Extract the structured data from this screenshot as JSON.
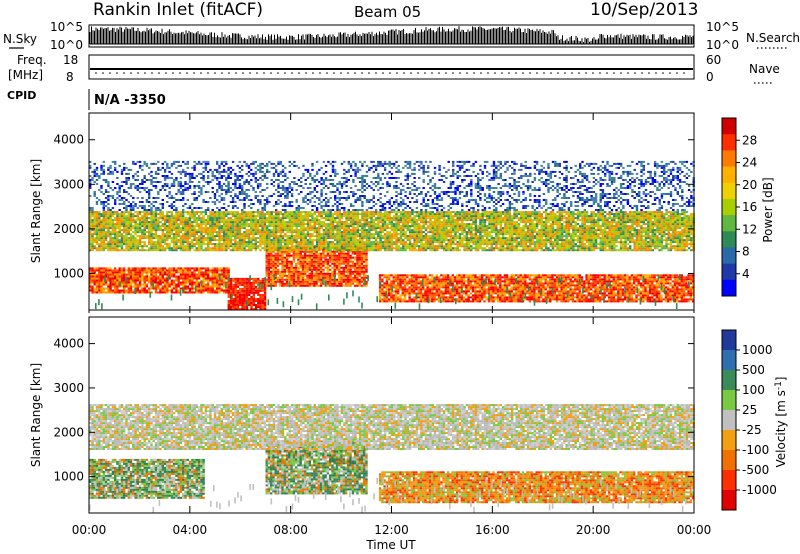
{
  "header": {
    "station": "Rankin Inlet (fitACF)",
    "beam": "Beam 05",
    "date": "10/Sep/2013"
  },
  "noise_panel": {
    "left_label": "N.Sky",
    "right_label": "N.Search",
    "left_top": "10^5",
    "left_bottom": "10^0",
    "right_top": "10^5",
    "right_bottom": "10^0"
  },
  "freq_panel": {
    "left_label_1": "Freq.",
    "left_label_2": "[MHz]",
    "right_label": "Nave",
    "left_top": "18",
    "left_bottom": "8",
    "right_top": "60",
    "right_bottom": "0"
  },
  "cpid": {
    "label": "CPID",
    "value": "N/A -3350"
  },
  "x_axis": {
    "label": "Time UT",
    "ticks": [
      "00:00",
      "04:00",
      "08:00",
      "12:00",
      "16:00",
      "20:00",
      "00:00"
    ]
  },
  "power_colorbar": {
    "label": "Power [dB]",
    "ticks": [
      "28",
      "24",
      "20",
      "16",
      "12",
      "8",
      "4"
    ],
    "colors": [
      "#d10000",
      "#ff2d00",
      "#ff7a00",
      "#ffb000",
      "#f0d000",
      "#a8d000",
      "#60b840",
      "#2e8b57",
      "#2a6aa8",
      "#1f3aa8",
      "#0000ff"
    ]
  },
  "velocity_colorbar": {
    "label": "Velocity [m s-1]",
    "label_main": "Velocity [m s",
    "label_sup": "-1",
    "label_end": "]",
    "ticks": [
      "1000",
      "500",
      "100",
      "25",
      "-25",
      "-100",
      "-500",
      "-1000"
    ],
    "colors": [
      "#1f3a9a",
      "#2f6fb0",
      "#3a8a5a",
      "#7ac943",
      "#c0c0c0",
      "#f0a010",
      "#f07000",
      "#ff3000",
      "#e00000"
    ]
  },
  "chart_data": [
    {
      "type": "heatmap",
      "title": "Power",
      "xlabel": "Time UT",
      "ylabel": "Slant Range [km]",
      "xlim": [
        "00:00",
        "24:00"
      ],
      "ylim": [
        180,
        4600
      ],
      "y_ticks": [
        1000,
        2000,
        3000,
        4000
      ],
      "colorbar_label": "Power [dB]",
      "colorbar_ticks": [
        4,
        8,
        12,
        16,
        20,
        24,
        28
      ],
      "scatter_bands": [
        {
          "t_start": 0.0,
          "t_end": 5.5,
          "range_low": 550,
          "range_high": 1100,
          "level": "high"
        },
        {
          "t_start": 5.5,
          "t_end": 7.0,
          "range_low": 180,
          "range_high": 900,
          "level": "very high"
        },
        {
          "t_start": 7.0,
          "t_end": 11.0,
          "range_low": 700,
          "range_high": 1600,
          "level": "high"
        },
        {
          "t_start": 11.5,
          "t_end": 24.0,
          "range_low": 350,
          "range_high": 950,
          "level": "high"
        },
        {
          "t_start": 0.0,
          "t_end": 24.0,
          "range_low": 1500,
          "range_high": 2400,
          "level": "medium"
        },
        {
          "t_start": 0.0,
          "t_end": 24.0,
          "range_low": 2400,
          "range_high": 3500,
          "level": "low (sparse)"
        }
      ]
    },
    {
      "type": "heatmap",
      "title": "Velocity",
      "xlabel": "Time UT",
      "ylabel": "Slant Range [km]",
      "xlim": [
        "00:00",
        "24:00"
      ],
      "ylim": [
        180,
        4600
      ],
      "y_ticks": [
        1000,
        2000,
        3000,
        4000
      ],
      "colorbar_label": "Velocity [m s-1]",
      "colorbar_ticks": [
        -1000,
        -500,
        -100,
        -25,
        25,
        100,
        500,
        1000
      ],
      "scatter_bands": [
        {
          "t_start": 0.0,
          "t_end": 4.5,
          "range_low": 500,
          "range_high": 1400,
          "velocity": "100 to 500 (green)"
        },
        {
          "t_start": 7.0,
          "t_end": 11.0,
          "range_low": 600,
          "range_high": 1800,
          "velocity": "100 to 500 (green)"
        },
        {
          "t_start": 11.5,
          "t_end": 24.0,
          "range_low": 400,
          "range_high": 1100,
          "velocity": "-100 to -500 (orange)"
        },
        {
          "t_start": 0.0,
          "t_end": 24.0,
          "range_low": 1600,
          "range_high": 2600,
          "velocity": "-25 to 25 (grey)"
        }
      ]
    }
  ]
}
